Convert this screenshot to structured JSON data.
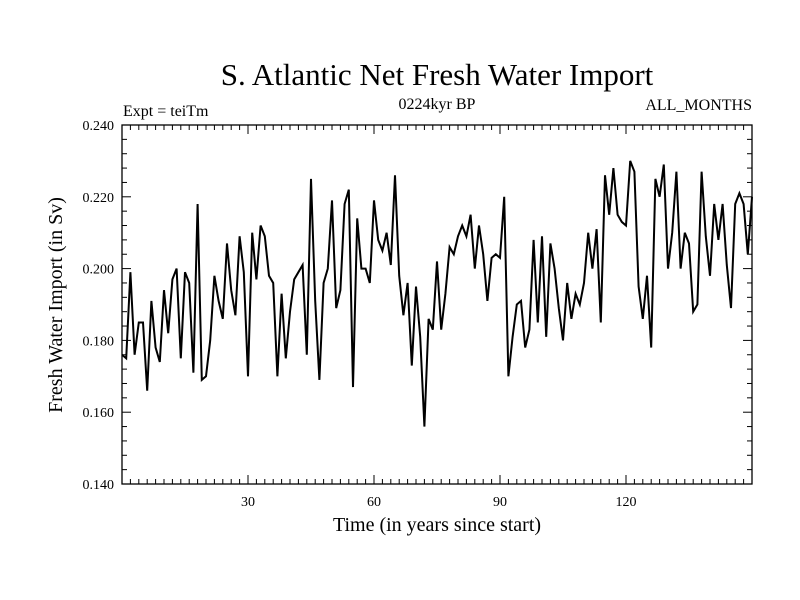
{
  "chart_data": {
    "type": "line",
    "title": "S. Atlantic Net Fresh Water Import",
    "subtitle_left": "Expt = teiTm",
    "subtitle_center": "0224kyr BP",
    "subtitle_right": "ALL_MONTHS",
    "xlabel": "Time (in years since start)",
    "ylabel": "Fresh Water Import (in Sv)",
    "xlim": [
      0,
      150
    ],
    "ylim": [
      0.14,
      0.24
    ],
    "xticks": [
      30,
      60,
      90,
      120
    ],
    "xtick_labels": [
      "30",
      "60",
      "90",
      "120"
    ],
    "yticks": [
      0.14,
      0.16,
      0.18,
      0.2,
      0.22,
      0.24
    ],
    "ytick_labels": [
      "0.140",
      "0.160",
      "0.180",
      "0.200",
      "0.220",
      "0.240"
    ],
    "grid": false,
    "series": [
      {
        "name": "Fresh Water Import",
        "color": "#000000",
        "x": [
          0,
          1,
          2,
          3,
          4,
          5,
          6,
          7,
          8,
          9,
          10,
          11,
          12,
          13,
          14,
          15,
          16,
          17,
          18,
          19,
          20,
          21,
          22,
          23,
          24,
          25,
          26,
          27,
          28,
          29,
          30,
          31,
          32,
          33,
          34,
          35,
          36,
          37,
          38,
          39,
          40,
          41,
          42,
          43,
          44,
          45,
          46,
          47,
          48,
          49,
          50,
          51,
          52,
          53,
          54,
          55,
          56,
          57,
          58,
          59,
          60,
          61,
          62,
          63,
          64,
          65,
          66,
          67,
          68,
          69,
          70,
          71,
          72,
          73,
          74,
          75,
          76,
          77,
          78,
          79,
          80,
          81,
          82,
          83,
          84,
          85,
          86,
          87,
          88,
          89,
          90,
          91,
          92,
          93,
          94,
          95,
          96,
          97,
          98,
          99,
          100,
          101,
          102,
          103,
          104,
          105,
          106,
          107,
          108,
          109,
          110,
          111,
          112,
          113,
          114,
          115,
          116,
          117,
          118,
          119,
          120,
          121,
          122,
          123,
          124,
          125,
          126,
          127,
          128,
          129,
          130,
          131,
          132,
          133,
          134,
          135,
          136,
          137,
          138,
          139,
          140,
          141,
          142,
          143,
          144,
          145,
          146,
          147,
          148,
          149,
          150
        ],
        "values": [
          0.176,
          0.175,
          0.199,
          0.176,
          0.185,
          0.185,
          0.166,
          0.191,
          0.178,
          0.174,
          0.194,
          0.182,
          0.197,
          0.2,
          0.175,
          0.199,
          0.196,
          0.171,
          0.218,
          0.169,
          0.17,
          0.18,
          0.198,
          0.191,
          0.186,
          0.207,
          0.194,
          0.187,
          0.209,
          0.199,
          0.17,
          0.21,
          0.197,
          0.212,
          0.209,
          0.198,
          0.196,
          0.17,
          0.193,
          0.175,
          0.188,
          0.197,
          0.199,
          0.201,
          0.176,
          0.225,
          0.191,
          0.169,
          0.196,
          0.2,
          0.219,
          0.189,
          0.194,
          0.218,
          0.222,
          0.167,
          0.214,
          0.2,
          0.2,
          0.196,
          0.219,
          0.208,
          0.205,
          0.21,
          0.201,
          0.226,
          0.198,
          0.187,
          0.196,
          0.173,
          0.195,
          0.181,
          0.156,
          0.186,
          0.183,
          0.202,
          0.183,
          0.193,
          0.206,
          0.204,
          0.209,
          0.212,
          0.209,
          0.215,
          0.2,
          0.212,
          0.204,
          0.191,
          0.203,
          0.204,
          0.203,
          0.22,
          0.17,
          0.181,
          0.19,
          0.191,
          0.178,
          0.183,
          0.208,
          0.185,
          0.209,
          0.181,
          0.207,
          0.2,
          0.189,
          0.18,
          0.196,
          0.186,
          0.193,
          0.19,
          0.196,
          0.21,
          0.2,
          0.211,
          0.185,
          0.226,
          0.215,
          0.228,
          0.215,
          0.213,
          0.212,
          0.23,
          0.227,
          0.195,
          0.186,
          0.198,
          0.178,
          0.225,
          0.22,
          0.229,
          0.2,
          0.21,
          0.227,
          0.2,
          0.21,
          0.207,
          0.188,
          0.19,
          0.227,
          0.209,
          0.198,
          0.218,
          0.208,
          0.218,
          0.201,
          0.189,
          0.218,
          0.221,
          0.218,
          0.204,
          0.22
        ]
      }
    ]
  }
}
